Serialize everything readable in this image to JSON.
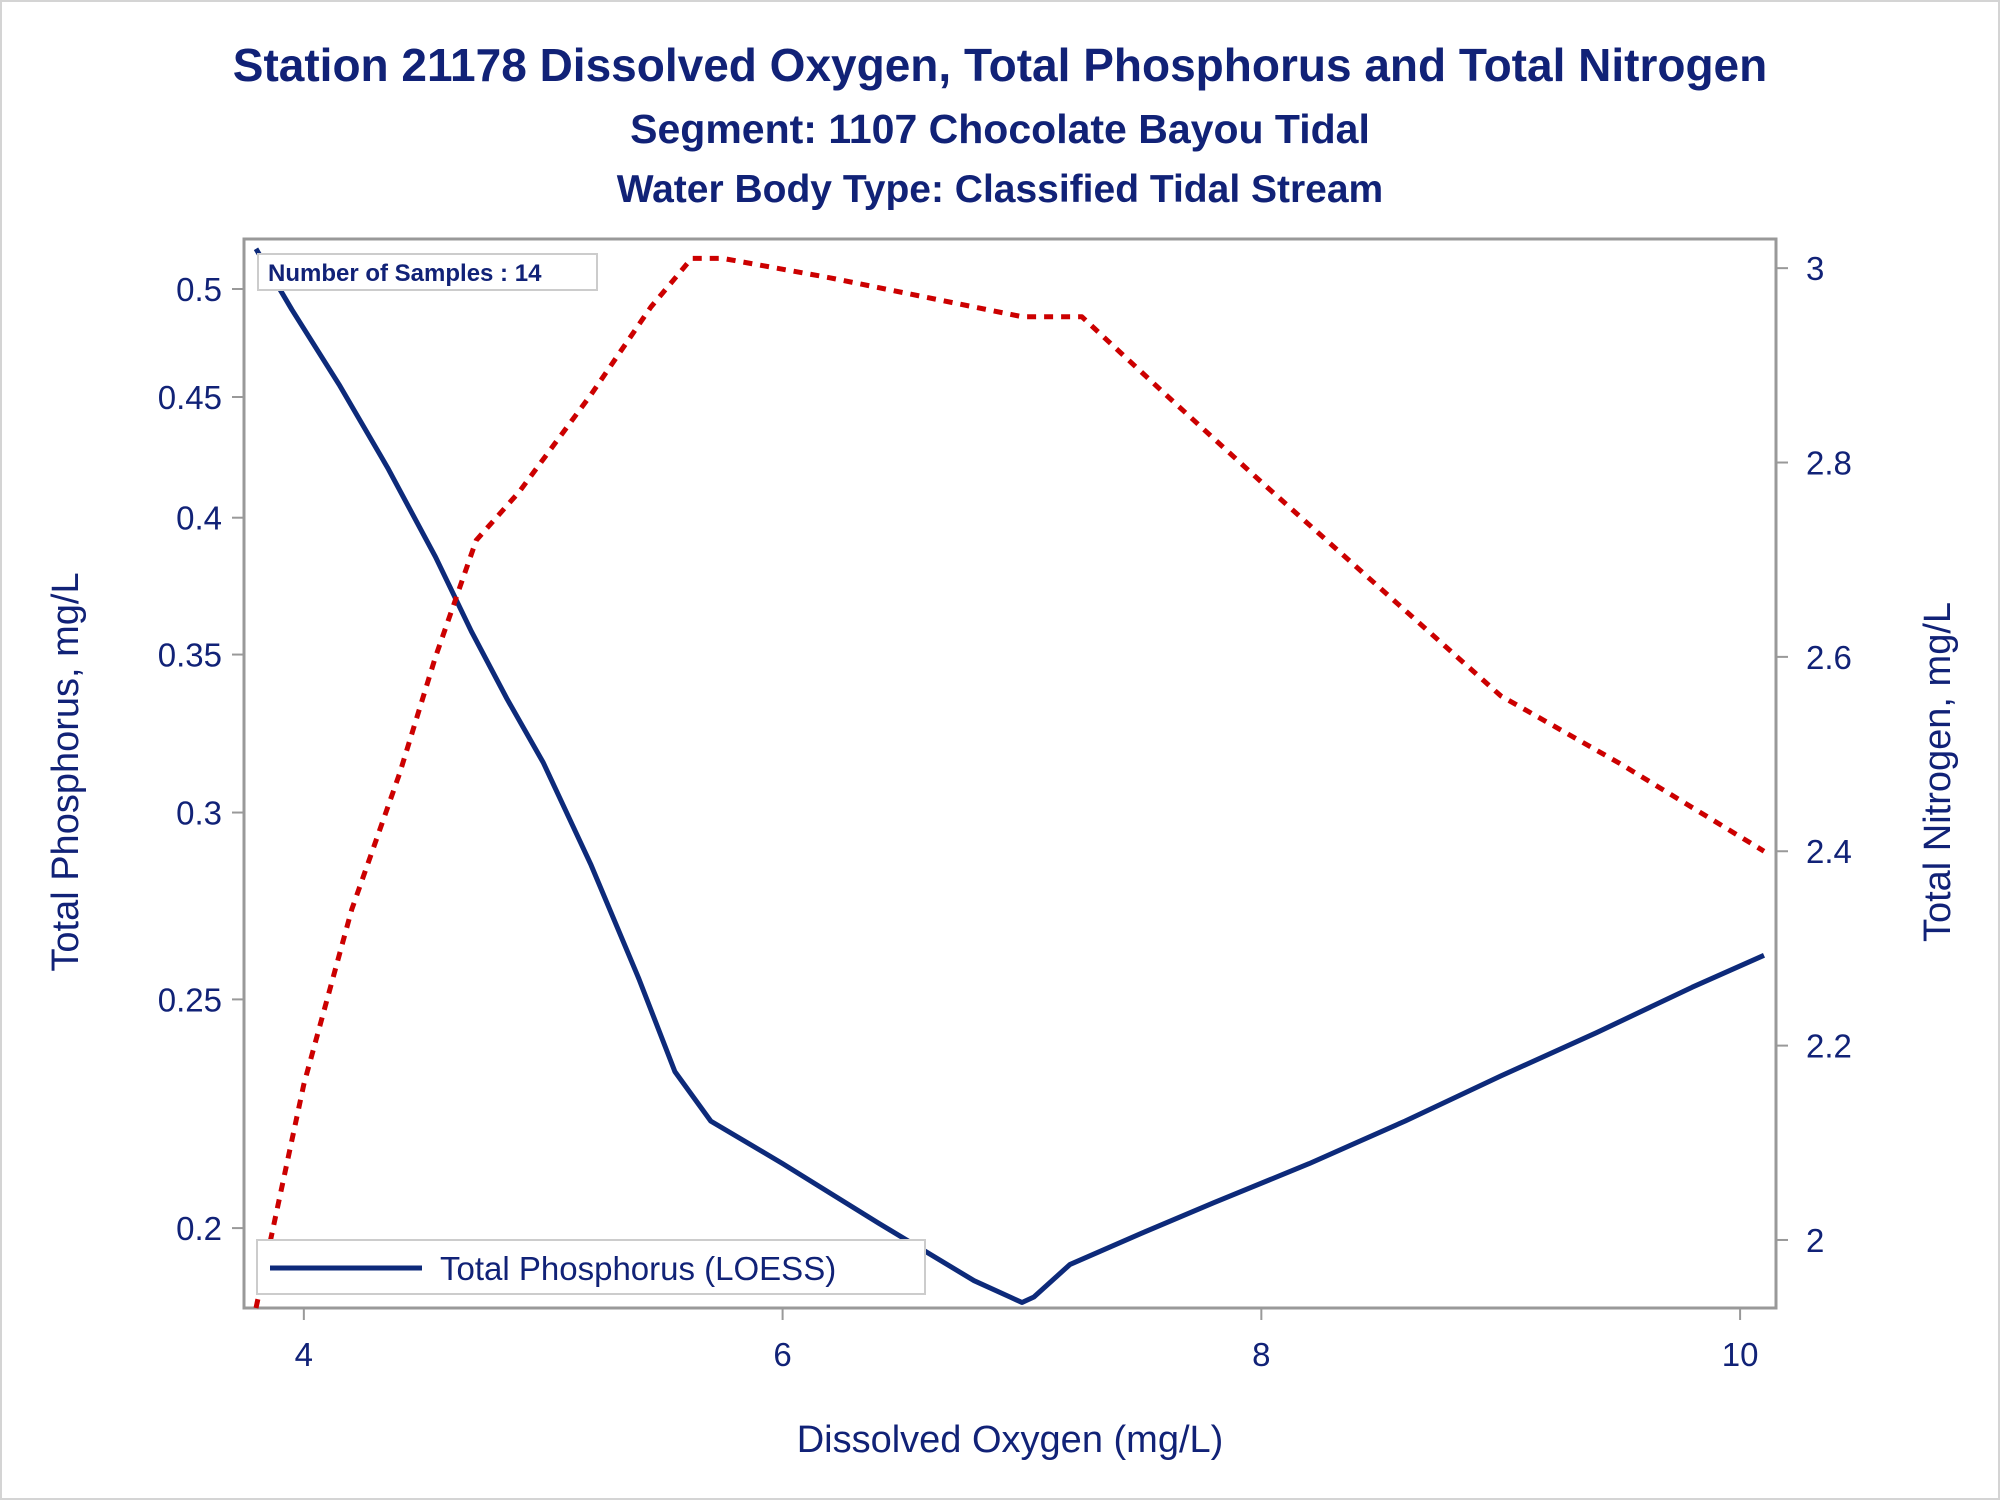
{
  "titles": {
    "main": "Station 21178  Dissolved Oxygen, Total Phosphorus and Total Nitrogen",
    "segment": "Segment: 1107  Chocolate Bayou Tidal",
    "waterbody": "Water Body Type: Classified Tidal Stream"
  },
  "chart_data": {
    "type": "line",
    "title": "Station 21178  Dissolved Oxygen, Total Phosphorus and Total Nitrogen",
    "subtitle": [
      "Segment: 1107  Chocolate Bayou Tidal",
      "Water Body Type: Classified Tidal Stream"
    ],
    "xlabel": "Dissolved Oxygen (mg/L)",
    "ylabel": "Total Phosphorus, mg/L",
    "y2label": "Total Nitrogen, mg/L",
    "xlim": [
      3.75,
      10.15
    ],
    "ylim": [
      0.185,
      0.525
    ],
    "y_scale": "log",
    "y2lim": [
      1.93,
      3.03
    ],
    "x_ticks": [
      4,
      6,
      8,
      10
    ],
    "y_ticks": [
      0.2,
      0.25,
      0.3,
      0.35,
      0.4,
      0.45,
      0.5
    ],
    "y_tick_labels": [
      "0.2",
      "0.25",
      "0.3",
      "0.35",
      "0.4",
      "0.45",
      "0.5"
    ],
    "y2_ticks": [
      2,
      2.2,
      2.4,
      2.6,
      2.8,
      3
    ],
    "y2_tick_labels": [
      "2",
      "2.2",
      "2.4",
      "2.6",
      "2.8",
      "3"
    ],
    "grid": false,
    "legend_position": "bottom-left",
    "inset_label": "Number of Samples : 14",
    "colors": {
      "phosphorus": "#0d2a7a",
      "nitrogen": "#cc0000",
      "text": "#112277",
      "frame": "#999999"
    },
    "series": [
      {
        "name": "Total Phosphorus (LOESS)",
        "axis": "left",
        "style": "solid",
        "x": [
          3.8,
          3.95,
          4.15,
          4.35,
          4.55,
          4.7,
          4.85,
          5.0,
          5.2,
          5.4,
          5.55,
          5.7,
          6.0,
          6.4,
          6.8,
          6.95,
          7.0,
          7.05,
          7.2,
          7.5,
          7.8,
          8.2,
          8.6,
          9.0,
          9.4,
          9.8,
          10.1
        ],
        "y": [
          0.52,
          0.49,
          0.455,
          0.42,
          0.385,
          0.358,
          0.335,
          0.315,
          0.285,
          0.255,
          0.233,
          0.222,
          0.213,
          0.201,
          0.19,
          0.187,
          0.186,
          0.187,
          0.193,
          0.199,
          0.205,
          0.213,
          0.222,
          0.232,
          0.242,
          0.253,
          0.261
        ]
      },
      {
        "name": "",
        "axis": "right",
        "style": "dotted",
        "x": [
          3.8,
          4.0,
          4.2,
          4.4,
          4.55,
          4.72,
          4.9,
          5.2,
          5.45,
          5.62,
          5.75,
          6.2,
          6.6,
          7.0,
          7.25,
          7.6,
          8.0,
          8.5,
          9.0,
          9.5,
          10.1
        ],
        "y": [
          1.93,
          2.16,
          2.34,
          2.48,
          2.6,
          2.72,
          2.77,
          2.87,
          2.96,
          3.01,
          3.01,
          2.99,
          2.97,
          2.95,
          2.95,
          2.87,
          2.78,
          2.67,
          2.56,
          2.49,
          2.4
        ]
      }
    ]
  }
}
